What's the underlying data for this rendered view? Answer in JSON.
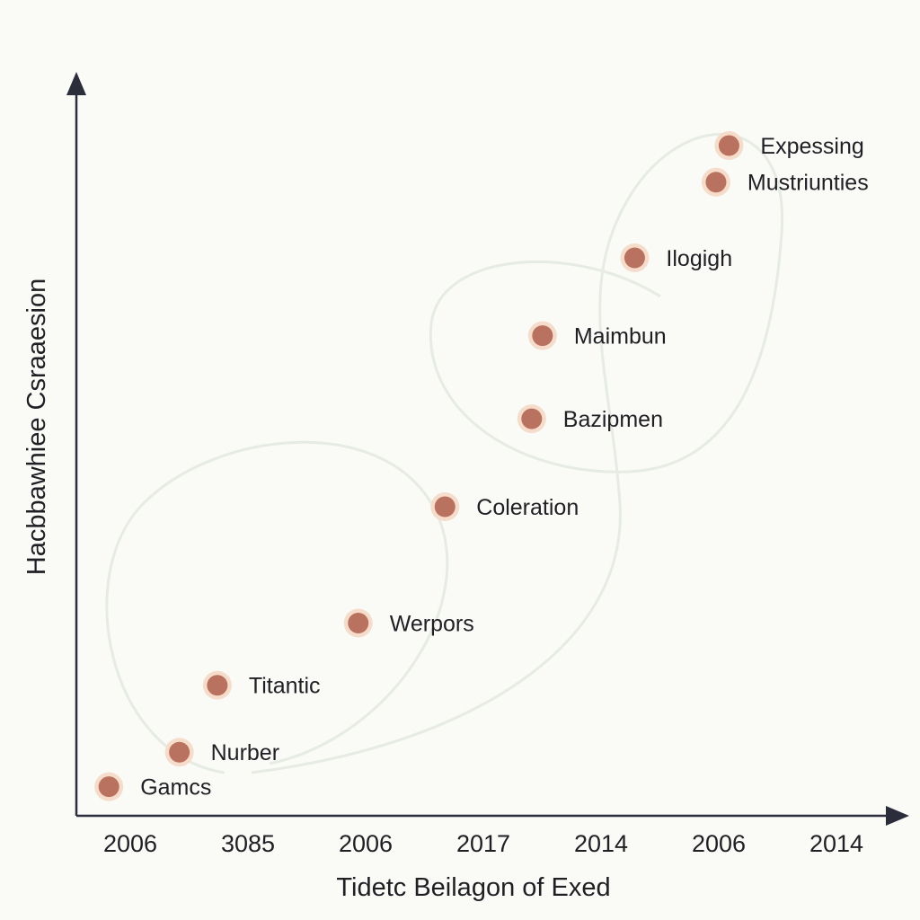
{
  "chart_data": {
    "type": "scatter",
    "title": "",
    "xlabel": "Tidetc Beilagon of Exed",
    "ylabel": "Hacbbawhiee Csraaesion",
    "x_ticks": [
      "2006",
      "3085",
      "2006",
      "2017",
      "2014",
      "2006",
      "2014"
    ],
    "points": [
      {
        "label": "Gamcs",
        "x": 0.3,
        "y": 4.3
      },
      {
        "label": "Nurber",
        "x": 0.95,
        "y": 9.4
      },
      {
        "label": "Titantic",
        "x": 1.3,
        "y": 19.3
      },
      {
        "label": "Werpors",
        "x": 2.6,
        "y": 28.5
      },
      {
        "label": "Coleration",
        "x": 3.4,
        "y": 45.7
      },
      {
        "label": "Bazipmen",
        "x": 4.2,
        "y": 58.7
      },
      {
        "label": "Maimbun",
        "x": 4.3,
        "y": 71.0
      },
      {
        "label": "Ilogigh",
        "x": 5.15,
        "y": 82.5
      },
      {
        "label": "Mustriunties",
        "x": 5.9,
        "y": 93.7
      },
      {
        "label": "Expessing",
        "x": 6.02,
        "y": 99.1
      }
    ],
    "xlim": [
      0,
      7.5
    ],
    "ylim": [
      0,
      110
    ],
    "grid": false,
    "legend": "none"
  }
}
